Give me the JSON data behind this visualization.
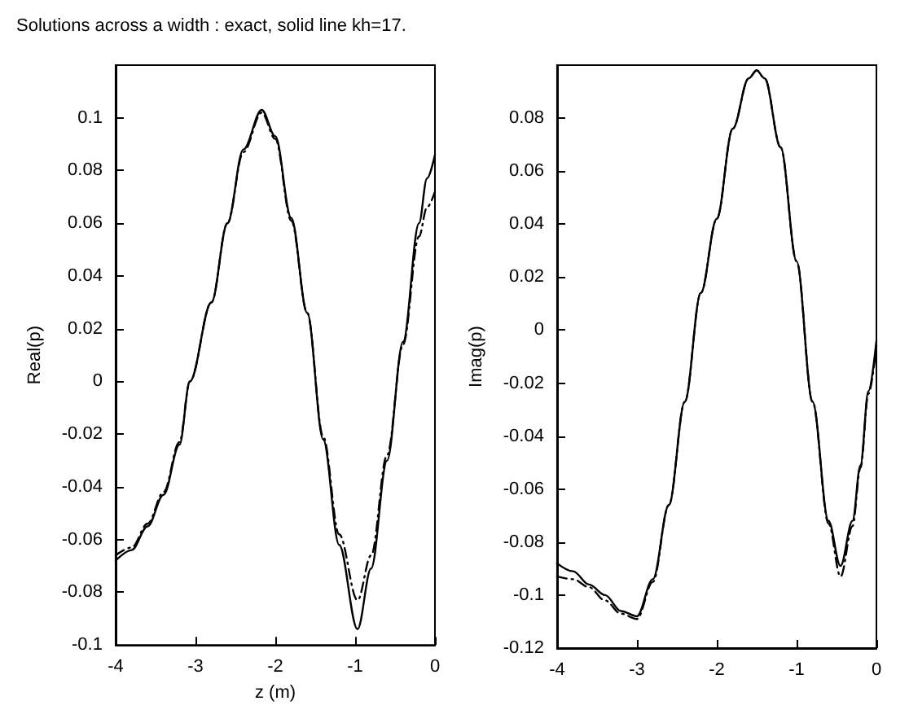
{
  "chart_data": [
    {
      "type": "line",
      "title": "Solutions across a width : exact, solid line kh=17.",
      "xlabel": "z (m)",
      "ylabel": "Real(p)",
      "xlim": [
        -4,
        0
      ],
      "xticks": [
        -4,
        -3,
        -2,
        -1,
        0
      ],
      "ylim": [
        -0.1,
        0.12
      ],
      "yticks": [
        -0.1,
        -0.08,
        -0.06,
        -0.04,
        -0.02,
        0,
        0.02,
        0.04,
        0.06,
        0.08,
        0.1
      ],
      "grid": false,
      "marker": "none",
      "series": [
        {
          "color": "#000000",
          "line_style": "solid",
          "x": [
            -4,
            -3.8,
            -3.6,
            -3.4,
            -3.2,
            -3.07,
            -2.8,
            -2.6,
            -2.4,
            -2.17,
            -2.0,
            -1.8,
            -1.6,
            -1.4,
            -1.2,
            -0.97,
            -0.8,
            -0.6,
            -0.4,
            -0.2,
            -0.1,
            0
          ],
          "values": [
            -0.068,
            -0.064,
            -0.055,
            -0.043,
            -0.024,
            0,
            0.03,
            0.06,
            0.088,
            0.103,
            0.093,
            0.062,
            0.026,
            -0.022,
            -0.062,
            -0.094,
            -0.071,
            -0.03,
            0.015,
            0.06,
            0.077,
            0.086
          ]
        },
        {
          "color": "#000000",
          "line_style": "dashed",
          "x": [
            -4,
            -3.8,
            -3.6,
            -3.4,
            -3.2,
            -3.07,
            -2.8,
            -2.6,
            -2.4,
            -2.17,
            -2.0,
            -1.8,
            -1.6,
            -1.4,
            -1.2,
            -0.97,
            -0.8,
            -0.6,
            -0.4,
            -0.2,
            -0.1,
            0
          ],
          "values": [
            -0.066,
            -0.063,
            -0.054,
            -0.042,
            -0.023,
            0,
            0.03,
            0.06,
            0.087,
            0.102,
            0.092,
            0.061,
            0.026,
            -0.021,
            -0.058,
            -0.083,
            -0.066,
            -0.028,
            0.014,
            0.055,
            0.066,
            0.072
          ]
        }
      ]
    },
    {
      "type": "line",
      "ylabel": "Imag(p)",
      "xlim": [
        -4,
        0
      ],
      "xticks": [
        -4,
        -3,
        -2,
        -1,
        0
      ],
      "ylim": [
        -0.12,
        0.1
      ],
      "yticks": [
        -0.12,
        -0.1,
        -0.08,
        -0.06,
        -0.04,
        -0.02,
        0,
        0.02,
        0.04,
        0.06,
        0.08
      ],
      "grid": false,
      "marker": "none",
      "series": [
        {
          "color": "#000000",
          "line_style": "solid",
          "x": [
            -4,
            -3.8,
            -3.6,
            -3.4,
            -3.2,
            -3.0,
            -2.8,
            -2.6,
            -2.4,
            -2.2,
            -2.0,
            -1.8,
            -1.6,
            -1.5,
            -1.4,
            -1.2,
            -1.0,
            -0.8,
            -0.6,
            -0.45,
            -0.3,
            -0.2,
            -0.1,
            0
          ],
          "values": [
            -0.088,
            -0.091,
            -0.096,
            -0.1,
            -0.106,
            -0.108,
            -0.094,
            -0.066,
            -0.027,
            0.014,
            0.042,
            0.076,
            0.095,
            0.098,
            0.095,
            0.069,
            0.026,
            -0.027,
            -0.072,
            -0.089,
            -0.072,
            -0.051,
            -0.023,
            -0.004
          ]
        },
        {
          "color": "#000000",
          "line_style": "dashed",
          "x": [
            -4,
            -3.8,
            -3.6,
            -3.4,
            -3.2,
            -3.0,
            -2.8,
            -2.6,
            -2.4,
            -2.2,
            -2.0,
            -1.8,
            -1.6,
            -1.5,
            -1.4,
            -1.2,
            -1.0,
            -0.8,
            -0.6,
            -0.45,
            -0.3,
            -0.2,
            -0.1,
            0
          ],
          "values": [
            -0.093,
            -0.094,
            -0.097,
            -0.102,
            -0.107,
            -0.109,
            -0.095,
            -0.066,
            -0.027,
            0.014,
            0.042,
            0.076,
            0.095,
            0.098,
            0.095,
            0.069,
            0.026,
            -0.027,
            -0.073,
            -0.093,
            -0.074,
            -0.052,
            -0.024,
            -0.006
          ]
        }
      ]
    }
  ]
}
